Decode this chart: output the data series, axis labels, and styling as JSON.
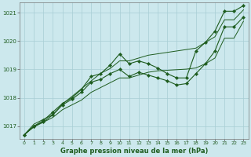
{
  "title": "Graphe pression niveau de la mer (hPa)",
  "bg_color": "#cce8ed",
  "grid_color": "#a8cdd4",
  "line_color": "#1e5c1e",
  "xlim": [
    -0.5,
    23.5
  ],
  "ylim": [
    1016.55,
    1021.35
  ],
  "yticks": [
    1017,
    1018,
    1019,
    1020,
    1021
  ],
  "xticks": [
    0,
    1,
    2,
    3,
    4,
    5,
    6,
    7,
    8,
    9,
    10,
    11,
    12,
    13,
    14,
    15,
    16,
    17,
    18,
    19,
    20,
    21,
    22,
    23
  ],
  "series": {
    "data1": [
      1016.7,
      1017.0,
      1017.2,
      1017.5,
      1017.8,
      1018.0,
      1018.3,
      1018.75,
      1018.85,
      1019.15,
      1019.55,
      1019.2,
      1019.3,
      1019.2,
      1019.05,
      1018.85,
      1018.7,
      1018.7,
      1019.65,
      1019.95,
      1020.35,
      1021.05,
      1021.05,
      1021.25
    ],
    "data2": [
      1016.7,
      1017.0,
      1017.15,
      1017.4,
      1017.75,
      1017.95,
      1018.2,
      1018.55,
      1018.65,
      1018.85,
      1019.0,
      1018.75,
      1018.9,
      1018.8,
      1018.7,
      1018.6,
      1018.45,
      1018.5,
      1018.85,
      1019.2,
      1019.65,
      1020.5,
      1020.5,
      1020.85
    ],
    "trend_high": [
      1016.7,
      1017.07,
      1017.24,
      1017.41,
      1017.78,
      1018.05,
      1018.32,
      1018.59,
      1018.86,
      1019.03,
      1019.3,
      1019.3,
      1019.4,
      1019.5,
      1019.55,
      1019.6,
      1019.65,
      1019.7,
      1019.75,
      1019.95,
      1020.15,
      1020.75,
      1020.75,
      1021.1
    ],
    "trend_low": [
      1016.7,
      1016.97,
      1017.14,
      1017.31,
      1017.58,
      1017.75,
      1017.92,
      1018.19,
      1018.36,
      1018.53,
      1018.7,
      1018.7,
      1018.8,
      1018.9,
      1018.95,
      1018.97,
      1018.99,
      1019.01,
      1019.05,
      1019.2,
      1019.4,
      1020.1,
      1020.1,
      1020.7
    ]
  }
}
